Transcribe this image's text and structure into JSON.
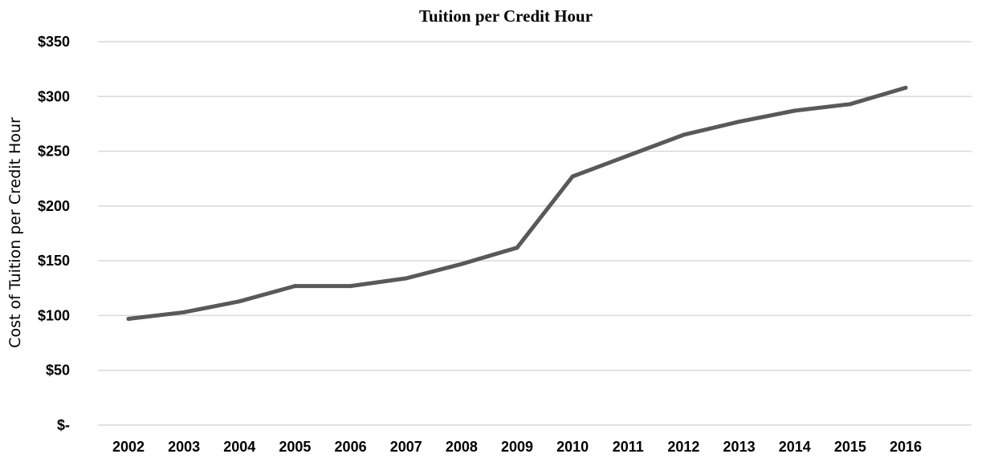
{
  "chart_data": {
    "type": "line",
    "title": "Tuition per Credit Hour",
    "xlabel": "",
    "ylabel": "Cost of Tuition per Credit Hour",
    "categories": [
      "2002",
      "2003",
      "2004",
      "2005",
      "2006",
      "2007",
      "2008",
      "2009",
      "2010",
      "2011",
      "2012",
      "2013",
      "2014",
      "2015",
      "2016"
    ],
    "series": [
      {
        "values": [
          97,
          103,
          113,
          127,
          127,
          134,
          147,
          162,
          227,
          246,
          265,
          277,
          287,
          293,
          308
        ],
        "color": "#595959"
      }
    ],
    "ylim": [
      0,
      350
    ],
    "yticks": [
      {
        "value": 0,
        "label": "$-"
      },
      {
        "value": 50,
        "label": "$50"
      },
      {
        "value": 100,
        "label": "$100"
      },
      {
        "value": 150,
        "label": "$150"
      },
      {
        "value": 200,
        "label": "$200"
      },
      {
        "value": 250,
        "label": "$250"
      },
      {
        "value": 300,
        "label": "$300"
      },
      {
        "value": 350,
        "label": "$350"
      }
    ],
    "grid": true,
    "legend": "none",
    "gridColor": "#d9d9d9"
  }
}
